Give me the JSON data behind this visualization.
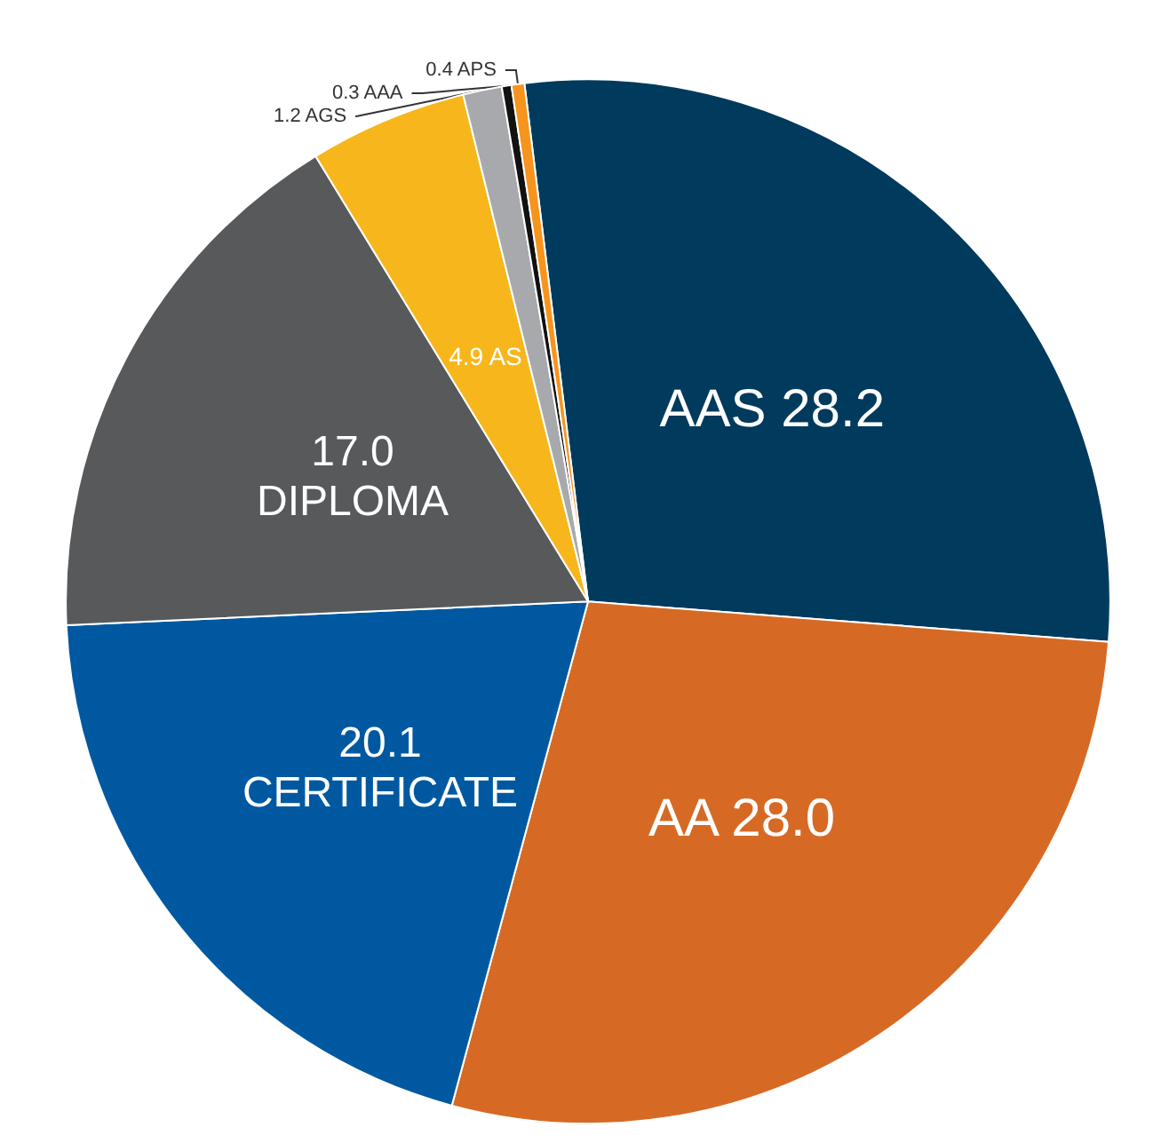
{
  "chart_data": {
    "type": "pie",
    "categories": [
      "AAS",
      "AA",
      "CERTIFICATE",
      "DIPLOMA",
      "AS",
      "AGS",
      "AAA",
      "APS"
    ],
    "values": [
      28.2,
      28.0,
      20.1,
      17.0,
      4.9,
      1.2,
      0.3,
      0.4
    ],
    "colors": [
      "#003a5d",
      "#d66a25",
      "#0059a0",
      "#58595b",
      "#f7b71c",
      "#a7a9ac",
      "#111111",
      "#f7941d"
    ],
    "value_labels": [
      "28.2",
      "28.0",
      "20.1",
      "17.0",
      "4.9",
      "1.2",
      "0.3",
      "0.4"
    ]
  }
}
